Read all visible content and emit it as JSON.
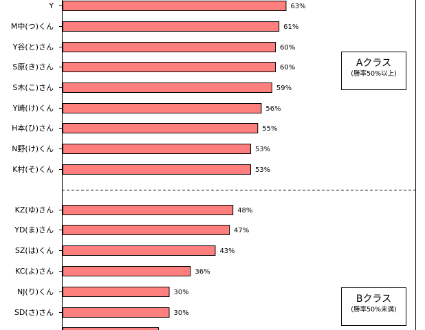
{
  "chart_data": {
    "type": "bar",
    "orientation": "horizontal",
    "xlim": [
      0,
      100
    ],
    "bar_color": "#ff7f7f",
    "bar_outline": "#000000",
    "value_suffix": "%",
    "categories": [
      "Y",
      "M中(つ)くん",
      "Y谷(と)さん",
      "S原(き)さん",
      "S木(こ)さん",
      "Y崎(け)くん",
      "H本(ひ)さん",
      "N野(け)くん",
      "K村(そ)くん",
      "KZ(ゆ)さん",
      "YD(ま)さん",
      "SZ(は)くん",
      "KC(よ)さん",
      "NJ(り)くん",
      "SD(さ)さん",
      ""
    ],
    "values": [
      63,
      61,
      60,
      60,
      59,
      56,
      55,
      53,
      53,
      48,
      47,
      43,
      36,
      30,
      30,
      27
    ],
    "value_labels": [
      "63%",
      "61%",
      "60%",
      "60%",
      "59%",
      "56%",
      "55%",
      "53%",
      "53%",
      "48%",
      "47%",
      "43%",
      "36%",
      "30%",
      "30%",
      ""
    ],
    "groups": [
      {
        "name": "Aクラス",
        "note": "(勝率50%以上)"
      },
      {
        "name": "Bクラス",
        "note": "(勝率50%未満)"
      }
    ]
  }
}
